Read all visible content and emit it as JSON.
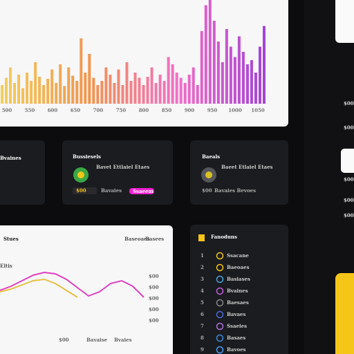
{
  "bar_panel": {
    "x_labels": [
      "500",
      "550",
      "600",
      "650",
      "700",
      "750",
      "800",
      "850",
      "900",
      "950",
      "1000",
      "1050"
    ],
    "values": [
      18,
      25,
      35,
      20,
      28,
      15,
      30,
      22,
      40,
      26,
      18,
      24,
      33,
      20,
      38,
      17,
      35,
      27,
      22,
      63,
      30,
      48,
      25,
      18,
      22,
      35,
      28,
      20,
      33,
      18,
      40,
      22,
      30,
      25,
      18,
      26,
      35,
      20,
      28,
      22,
      45,
      38,
      30,
      25,
      20,
      28,
      35,
      18,
      70,
      95,
      100,
      80,
      60,
      40,
      72,
      55,
      45,
      65,
      50,
      38,
      42,
      30,
      55,
      75
    ],
    "colors": [
      "#f2c94c",
      "#f08a3c",
      "#f060c0",
      "#9b30d0"
    ]
  },
  "cards": [
    {
      "title": "Bvaines"
    },
    {
      "title": "Bussiesels",
      "line1": "Bavet Ettlaiel Etaes",
      "badge": "$00",
      "line2": "Bavaies",
      "pill": "Ssaeem"
    },
    {
      "title": "Baeals",
      "line1": "Baeet Etlaiel Etaes",
      "badge": "$00",
      "line2": "Bavaies Bevoes"
    }
  ],
  "stats": {
    "title": "Stues",
    "legend": [
      "Baseoaes",
      "Basees"
    ],
    "label": "Eltis",
    "side_labels": [
      "$00",
      "$00",
      "$00",
      "$00",
      "$00"
    ],
    "foot_labels": [
      "$00",
      "Bavaise",
      "Bvaies"
    ],
    "series": [
      {
        "color": "#e040c0",
        "values": [
          30,
          36,
          44,
          52,
          56,
          54,
          46,
          34,
          22,
          28,
          40,
          44,
          36,
          20
        ]
      },
      {
        "color": "#e8c040",
        "values": [
          28,
          32,
          38,
          44,
          46,
          40,
          30,
          20
        ]
      }
    ]
  },
  "list": {
    "title": "Fanoduns",
    "rows": [
      {
        "n": "1",
        "text": "Ssacane"
      },
      {
        "n": "2",
        "text": "Baeoaes"
      },
      {
        "n": "3",
        "text": "Basiases"
      },
      {
        "n": "4",
        "text": "Bvaines"
      },
      {
        "n": "5",
        "text": "Baesaes"
      },
      {
        "n": "6",
        "text": "Bavaes"
      },
      {
        "n": "7",
        "text": "Ssaeies"
      },
      {
        "n": "8",
        "text": "Basaes"
      },
      {
        "n": "9",
        "text": "Bavoes"
      }
    ]
  },
  "sidebar": {
    "items": [
      "$00",
      "$00",
      "$00",
      "$00",
      "$00"
    ]
  }
}
